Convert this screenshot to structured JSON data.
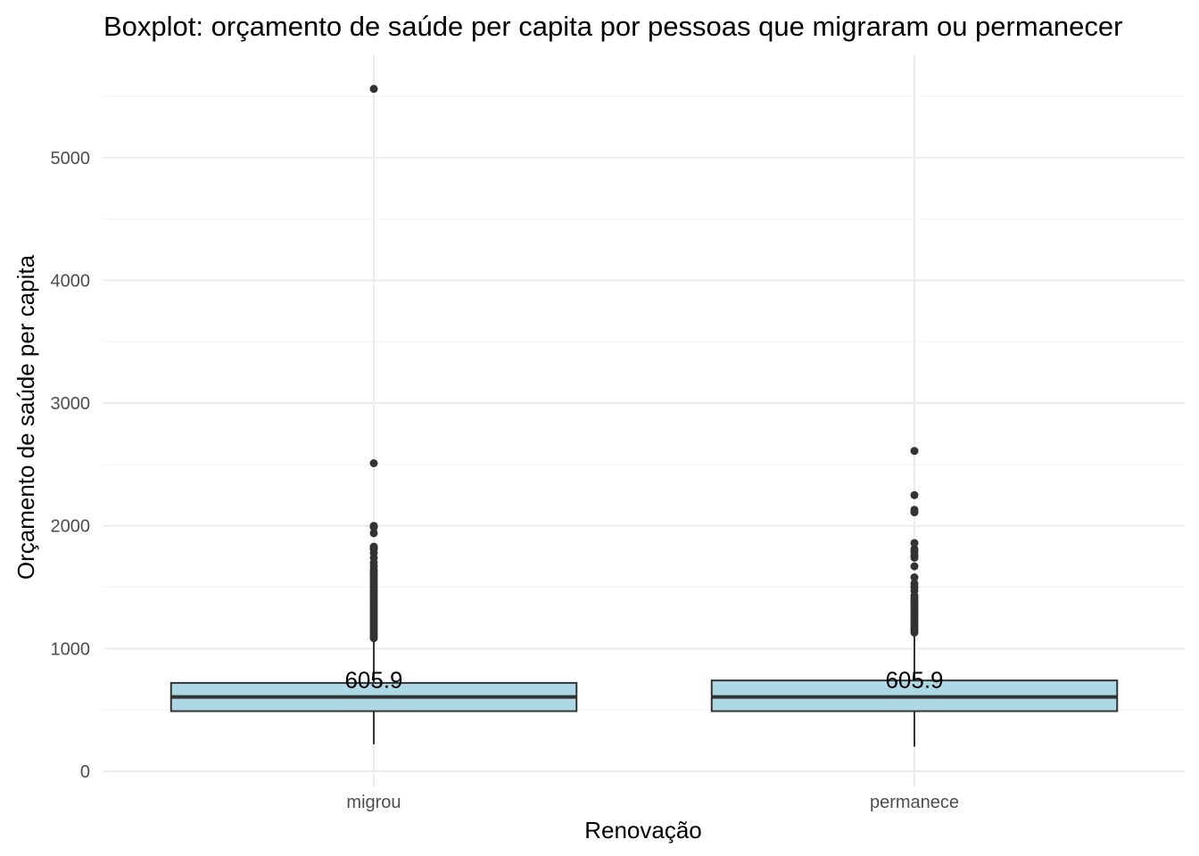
{
  "chart_data": {
    "type": "boxplot",
    "title": "Boxplot: orçamento de saúde per capita por pessoas que migraram ou permanecer",
    "xlabel": "Renovação",
    "ylabel": "Orçamento de saúde per capita",
    "ylim": [
      -150,
      5780
    ],
    "yticks": [
      0,
      1000,
      2000,
      3000,
      4000,
      5000
    ],
    "ytick_labels": [
      "0",
      "1000",
      "2000",
      "3000",
      "4000",
      "5000"
    ],
    "grid": true,
    "legend": "none",
    "box_fill": "#add8e6",
    "box_stroke": "#333333",
    "outlier_color": "#333333",
    "categories": [
      "migrou",
      "permanece"
    ],
    "boxes": [
      {
        "category": "migrou",
        "whisker_low": 220,
        "q1": 490,
        "median": 605.9,
        "q3": 720,
        "whisker_high": 1070,
        "median_label": "605.9",
        "outliers": [
          5560,
          2510,
          2000,
          1990,
          1940,
          1830,
          1820,
          1810,
          1780,
          1740,
          1700,
          1670,
          1640,
          1620,
          1600,
          1580,
          1560,
          1540,
          1520,
          1500,
          1480,
          1460,
          1440,
          1420,
          1400,
          1380,
          1360,
          1340,
          1320,
          1300,
          1280,
          1260,
          1240,
          1220,
          1200,
          1180,
          1160,
          1140,
          1120,
          1100,
          1085
        ]
      },
      {
        "category": "permanece",
        "whisker_low": 200,
        "q1": 490,
        "median": 605.9,
        "q3": 740,
        "whisker_high": 1110,
        "median_label": "605.9",
        "outliers": [
          2610,
          2250,
          2130,
          2110,
          1860,
          1810,
          1790,
          1760,
          1740,
          1670,
          1580,
          1530,
          1500,
          1470,
          1430,
          1410,
          1390,
          1370,
          1350,
          1330,
          1310,
          1290,
          1270,
          1250,
          1230,
          1210,
          1190,
          1170,
          1150,
          1130
        ]
      }
    ]
  }
}
